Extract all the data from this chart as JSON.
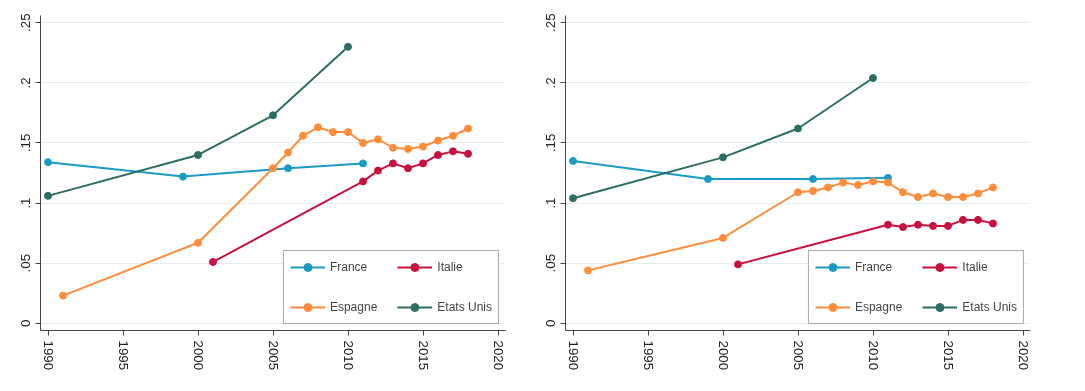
{
  "chart_data": [
    {
      "type": "line",
      "marker": "circle",
      "grid": "y",
      "legend": "bottom right",
      "xlim": [
        1989.5,
        2020.5
      ],
      "ylim": [
        -0.006,
        0.256
      ],
      "xticks": [
        1990,
        1995,
        2000,
        2005,
        2010,
        2015,
        2020
      ],
      "yticks": [
        {
          "value": 0,
          "label": "0"
        },
        {
          "value": 0.05,
          "label": ".05"
        },
        {
          "value": 0.1,
          "label": ".1"
        },
        {
          "value": 0.15,
          "label": ".15"
        },
        {
          "value": 0.2,
          "label": ".2"
        },
        {
          "value": 0.25,
          "label": ".25"
        }
      ],
      "series": [
        {
          "name": "France",
          "color": "#1b9ac6",
          "x": [
            1990,
            1999,
            2006,
            2011
          ],
          "values": [
            0.134,
            0.122,
            0.129,
            0.133
          ]
        },
        {
          "name": "Italie",
          "color": "#c8103e",
          "x": [
            2001,
            2011,
            2012,
            2013,
            2014,
            2015,
            2016,
            2017,
            2018
          ],
          "values": [
            0.051,
            0.118,
            0.127,
            0.133,
            0.129,
            0.133,
            0.14,
            0.143,
            0.141
          ]
        },
        {
          "name": "Espagne",
          "color": "#ff8c3a",
          "x": [
            1991,
            2000,
            2005,
            2006,
            2007,
            2008,
            2009,
            2010,
            2011,
            2012,
            2013,
            2014,
            2015,
            2016,
            2017,
            2018
          ],
          "values": [
            0.023,
            0.067,
            0.129,
            0.142,
            0.156,
            0.163,
            0.159,
            0.159,
            0.15,
            0.153,
            0.146,
            0.145,
            0.147,
            0.152,
            0.156,
            0.162
          ]
        },
        {
          "name": "Etats Unis",
          "color": "#2c6e63",
          "x": [
            1990,
            2000,
            2005,
            2010
          ],
          "values": [
            0.106,
            0.14,
            0.173,
            0.23
          ]
        }
      ]
    },
    {
      "type": "line",
      "marker": "circle",
      "grid": "y",
      "legend": "bottom right",
      "xlim": [
        1989.5,
        2020.5
      ],
      "ylim": [
        -0.006,
        0.256
      ],
      "xticks": [
        1990,
        1995,
        2000,
        2005,
        2010,
        2015,
        2020
      ],
      "yticks": [
        {
          "value": 0,
          "label": "0"
        },
        {
          "value": 0.05,
          "label": ".05"
        },
        {
          "value": 0.1,
          "label": ".1"
        },
        {
          "value": 0.15,
          "label": ".15"
        },
        {
          "value": 0.2,
          "label": ".2"
        },
        {
          "value": 0.25,
          "label": ".25"
        }
      ],
      "series": [
        {
          "name": "France",
          "color": "#1b9ac6",
          "x": [
            1990,
            1999,
            2006,
            2011
          ],
          "values": [
            0.135,
            0.12,
            0.12,
            0.121
          ]
        },
        {
          "name": "Italie",
          "color": "#c8103e",
          "x": [
            2001,
            2011,
            2012,
            2013,
            2014,
            2015,
            2016,
            2017,
            2018
          ],
          "values": [
            0.049,
            0.082,
            0.08,
            0.082,
            0.081,
            0.081,
            0.086,
            0.086,
            0.083
          ]
        },
        {
          "name": "Espagne",
          "color": "#ff8c3a",
          "x": [
            1991,
            2000,
            2005,
            2006,
            2007,
            2008,
            2009,
            2010,
            2011,
            2012,
            2013,
            2014,
            2015,
            2016,
            2017,
            2018
          ],
          "values": [
            0.044,
            0.071,
            0.109,
            0.11,
            0.113,
            0.117,
            0.115,
            0.118,
            0.117,
            0.109,
            0.105,
            0.108,
            0.105,
            0.105,
            0.108,
            0.113
          ]
        },
        {
          "name": "Etats Unis",
          "color": "#2c6e63",
          "x": [
            1990,
            2000,
            2005,
            2010
          ],
          "values": [
            0.104,
            0.138,
            0.162,
            0.204
          ]
        }
      ]
    }
  ]
}
